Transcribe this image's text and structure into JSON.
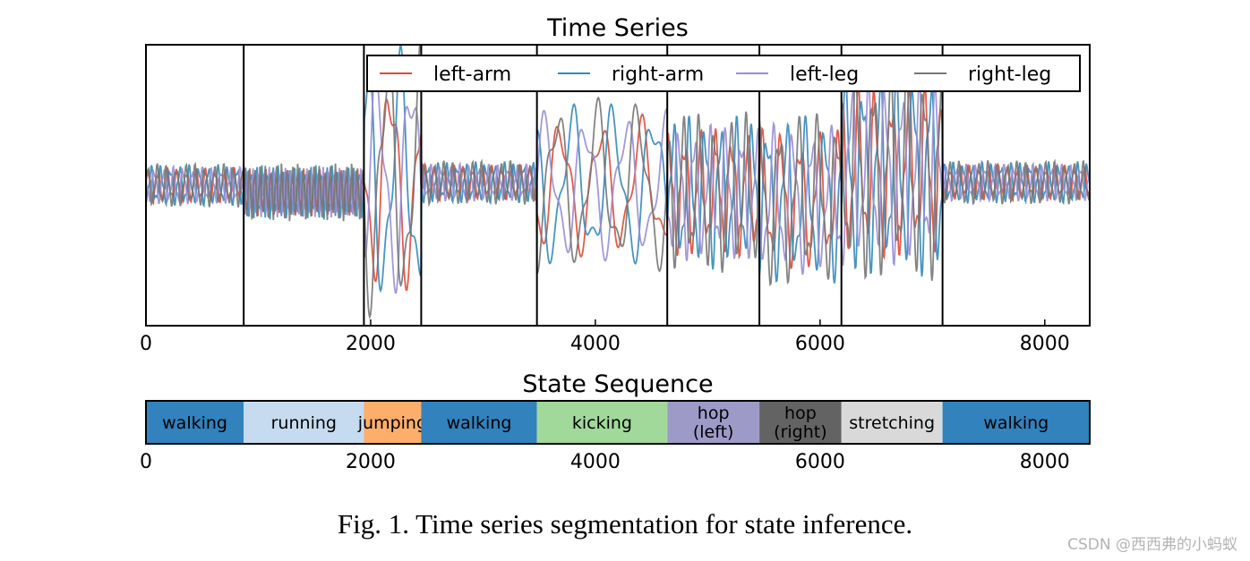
{
  "chart_data": [
    {
      "type": "line",
      "title": "Time Series",
      "xlabel": "",
      "ylabel": "",
      "xlim": [
        0,
        8400
      ],
      "x_ticks": [
        "0",
        "2000",
        "4000",
        "6000",
        "8000"
      ],
      "x_tick_values": [
        0,
        2000,
        4000,
        6000,
        8000
      ],
      "y_ticks": [],
      "grid": false,
      "legend_position": "top-right",
      "series": [
        {
          "name": "left-arm",
          "color": "#e24a33"
        },
        {
          "name": "right-arm",
          "color": "#348abd"
        },
        {
          "name": "left-leg",
          "color": "#988ed5"
        },
        {
          "name": "right-leg",
          "color": "#777777"
        }
      ],
      "change_points": [
        870,
        1940,
        2450,
        3480,
        4640,
        5460,
        6190,
        7090
      ],
      "segment_behavior": [
        {
          "start": 0,
          "end": 870,
          "state": "walking",
          "amplitude": 0.15,
          "period": 85,
          "baseline": 0
        },
        {
          "start": 870,
          "end": 1940,
          "state": "running",
          "amplitude": 0.2,
          "period": 48,
          "baseline": -0.05
        },
        {
          "start": 1940,
          "end": 2450,
          "state": "jumping",
          "amplitude": 0.95,
          "period": 300,
          "baseline": 0.05
        },
        {
          "start": 2450,
          "end": 3480,
          "state": "walking",
          "amplitude": 0.15,
          "period": 85,
          "baseline": 0.02
        },
        {
          "start": 3480,
          "end": 4640,
          "state": "kicking",
          "amplitude": 0.6,
          "period": 360,
          "baseline": 0.0
        },
        {
          "start": 4640,
          "end": 5460,
          "state": "hop (left)",
          "amplitude": 0.55,
          "period": 140,
          "baseline": -0.05
        },
        {
          "start": 5460,
          "end": 6190,
          "state": "hop (right)",
          "amplitude": 0.6,
          "period": 170,
          "baseline": -0.1
        },
        {
          "start": 6190,
          "end": 7090,
          "state": "stretching",
          "amplitude": 0.75,
          "period": 150,
          "baseline": 0.1
        },
        {
          "start": 7090,
          "end": 8400,
          "state": "walking",
          "amplitude": 0.15,
          "period": 85,
          "baseline": 0.02
        }
      ]
    },
    {
      "type": "bar",
      "title": "State Sequence",
      "xlim": [
        0,
        8400
      ],
      "x_ticks": [
        "0",
        "2000",
        "4000",
        "6000",
        "8000"
      ],
      "x_tick_values": [
        0,
        2000,
        4000,
        6000,
        8000
      ],
      "segments": [
        {
          "label": "walking",
          "start": 0,
          "end": 870,
          "color": "#3182bd"
        },
        {
          "label": "running",
          "start": 870,
          "end": 1940,
          "color": "#c6dbef"
        },
        {
          "label": "jumping",
          "start": 1940,
          "end": 2450,
          "color": "#fdae6b"
        },
        {
          "label": "walking",
          "start": 2450,
          "end": 3480,
          "color": "#3182bd"
        },
        {
          "label": "kicking",
          "start": 3480,
          "end": 4640,
          "color": "#a1d99b"
        },
        {
          "label": "hop\n(left)",
          "start": 4640,
          "end": 5460,
          "color": "#9e9ac8"
        },
        {
          "label": "hop\n(right)",
          "start": 5460,
          "end": 6190,
          "color": "#636363"
        },
        {
          "label": "stretching",
          "start": 6190,
          "end": 7090,
          "color": "#d9d9d9"
        },
        {
          "label": "walking",
          "start": 7090,
          "end": 8400,
          "color": "#3182bd"
        }
      ]
    }
  ],
  "caption": "Fig. 1.  Time series segmentation for state inference.",
  "watermark": "CSDN @西西弗的小蚂蚁"
}
